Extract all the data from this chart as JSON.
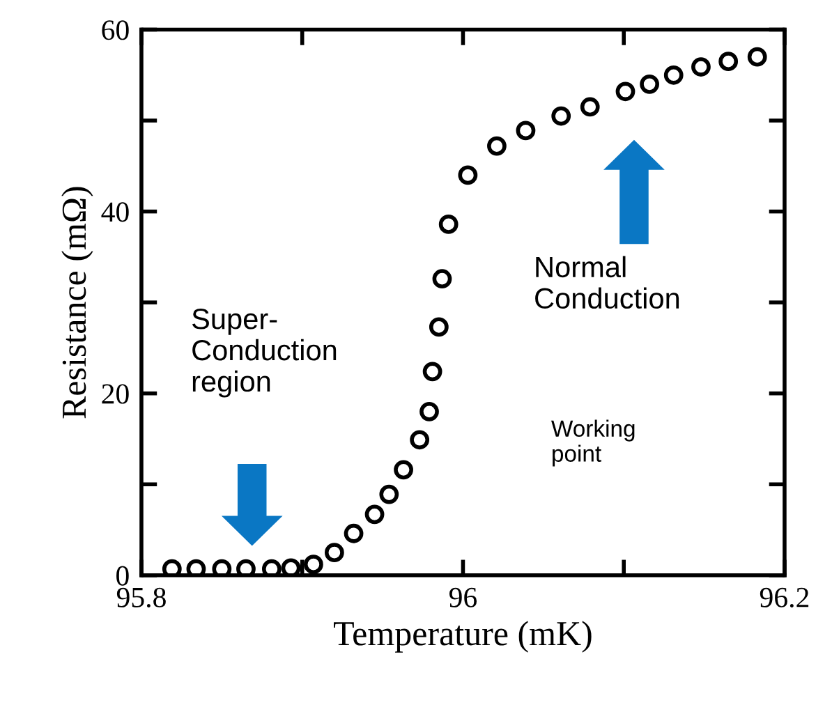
{
  "chart_data": {
    "type": "scatter",
    "xlabel": "Temperature (mK)",
    "ylabel": "Resistance (mΩ)",
    "x": [
      95.819,
      95.834,
      95.85,
      95.865,
      95.881,
      95.893,
      95.907,
      95.92,
      95.932,
      95.945,
      95.954,
      95.963,
      95.973,
      95.979,
      95.981,
      95.985,
      95.987,
      95.991,
      96.003,
      96.021,
      96.039,
      96.061,
      96.079,
      96.101,
      96.116,
      96.131,
      96.148,
      96.165,
      96.183
    ],
    "values": [
      0.7,
      0.7,
      0.7,
      0.7,
      0.7,
      0.8,
      1.2,
      2.5,
      4.6,
      6.7,
      8.9,
      11.6,
      14.9,
      18.0,
      22.4,
      27.3,
      32.6,
      38.6,
      44.0,
      47.2,
      48.9,
      50.5,
      51.5,
      53.2,
      54.0,
      55.0,
      55.9,
      56.5,
      57.0
    ],
    "color": "#000000",
    "marker": "circle",
    "xlim": [
      95.8,
      96.2
    ],
    "xticks": [
      95.8,
      {
        "value": 95.9,
        "label": null
      },
      96,
      {
        "value": 96.1,
        "label": null
      },
      96.2
    ],
    "ylim": [
      0,
      60
    ],
    "yticks": [
      0,
      {
        "value": 10,
        "label": null
      },
      20,
      {
        "value": 30,
        "label": null
      },
      40,
      {
        "value": 50,
        "label": null
      },
      60
    ],
    "grid": false,
    "legend": false,
    "annotations": [
      "Super-\nConduction\nregion",
      "Normal\nConduction",
      "Working\npoint"
    ]
  }
}
